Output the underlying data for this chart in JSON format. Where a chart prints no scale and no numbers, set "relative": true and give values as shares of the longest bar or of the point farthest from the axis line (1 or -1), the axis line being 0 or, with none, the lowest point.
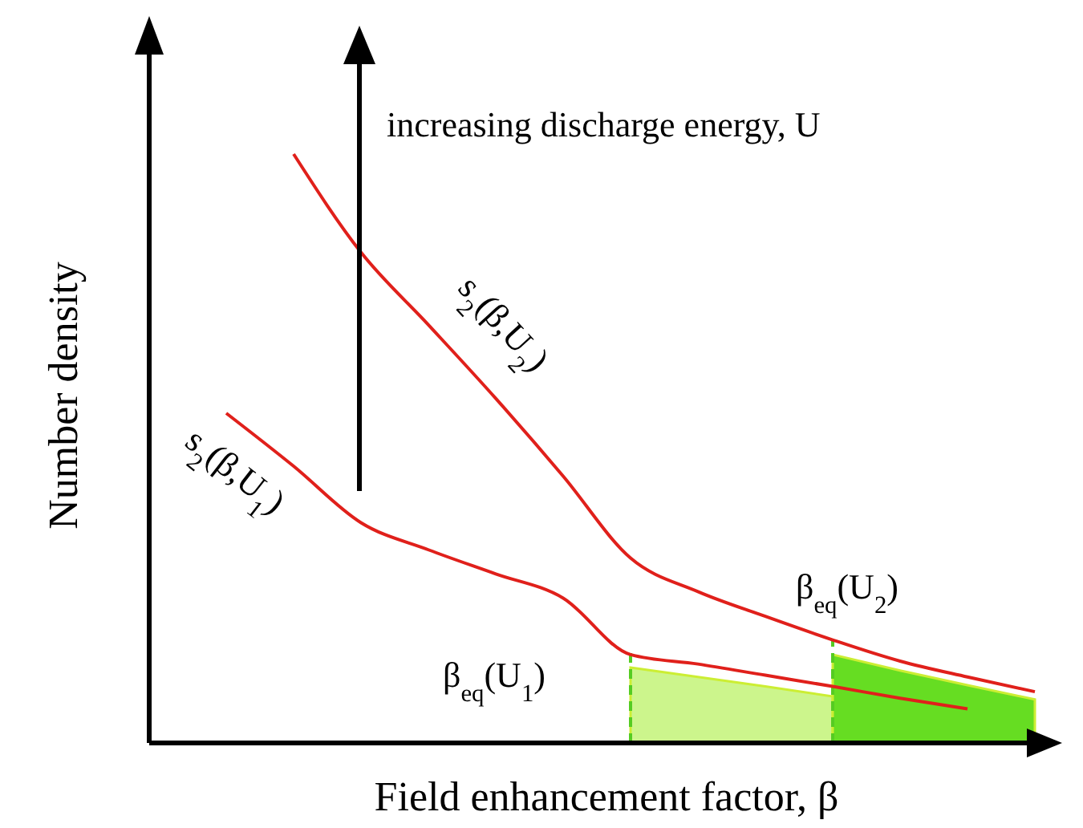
{
  "chart_data": {
    "type": "line",
    "relative": true,
    "xlabel": "Field enhancement factor, β",
    "ylabel": "Number density",
    "marker": "none",
    "line_style": "solid",
    "categories": [
      null,
      null,
      null,
      null,
      null,
      null,
      null,
      null,
      null,
      null,
      null,
      null,
      null
    ],
    "series": [
      {
        "type": "area",
        "color": "#ccf58c",
        "values": [
          null,
          null,
          null,
          null,
          null,
          null,
          0.128,
          0.112,
          0.096,
          0.079,
          null,
          null,
          null
        ]
      },
      {
        "type": "area",
        "color": "#66dd22",
        "values": [
          null,
          null,
          null,
          null,
          null,
          null,
          null,
          null,
          null,
          0.15,
          0.123,
          0.098,
          0.074
        ]
      },
      {
        "name": "s$_{2}$(β,U$_{2}$)",
        "color": "#e0201b",
        "values": [
          null,
          1,
          0.833,
          0.71,
          0.585,
          0.453,
          0.314,
          0.257,
          0.215,
          0.175,
          0.139,
          0.112,
          0.087
        ]
      },
      {
        "name": "s$_{2}$(β,U$_{1}$)",
        "color": "#e0201b",
        "values": [
          0.56,
          0.47,
          0.374,
          0.328,
          0.287,
          0.246,
          0.15,
          0.134,
          0.115,
          0.096,
          0.076,
          0.058,
          null
        ]
      }
    ],
    "annotations": [
      "increasing discharge energy, U",
      "β$_{eq}$(U$_{1}$)",
      "β$_{eq}$(U$_{2}$)"
    ]
  }
}
